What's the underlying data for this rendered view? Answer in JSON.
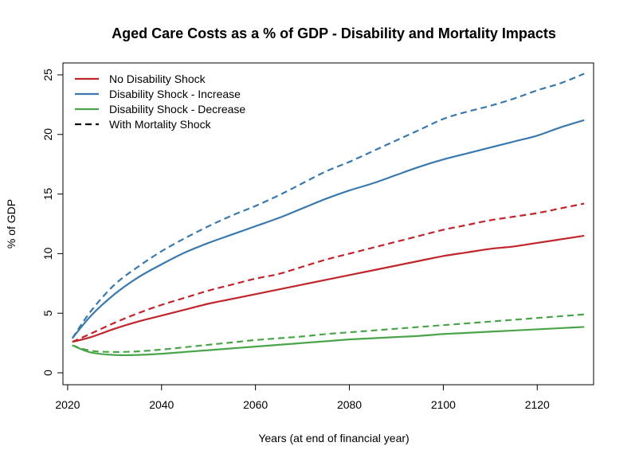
{
  "chart_data": {
    "type": "line",
    "title": "Aged Care Costs as a % of GDP - Disability and Mortality Impacts",
    "xlabel": "Years (at end of financial year)",
    "ylabel": "% of GDP",
    "xlim": [
      2019,
      2132
    ],
    "ylim": [
      -1,
      26
    ],
    "xticks": [
      2020,
      2040,
      2060,
      2080,
      2100,
      2120
    ],
    "yticks": [
      0,
      5,
      10,
      15,
      20,
      25
    ],
    "grid": false,
    "legend_position": "top-left",
    "legend": [
      {
        "label": "No Disability Shock",
        "color": "#c0252b",
        "dash": "solid"
      },
      {
        "label": "Disability Shock - Increase",
        "color": "#3a79ad",
        "dash": "solid"
      },
      {
        "label": "Disability Shock - Decrease",
        "color": "#4aa54a",
        "dash": "solid"
      },
      {
        "label": "With Mortality Shock",
        "color": "#000000",
        "dash": "dashed"
      }
    ],
    "series": [
      {
        "name": "No Disability Shock",
        "color": "#c0252b",
        "dash": "solid",
        "x": [
          2021,
          2025,
          2030,
          2035,
          2040,
          2045,
          2050,
          2055,
          2060,
          2065,
          2070,
          2075,
          2080,
          2085,
          2090,
          2095,
          2100,
          2105,
          2110,
          2115,
          2120,
          2125,
          2130
        ],
        "y": [
          2.6,
          3.0,
          3.7,
          4.3,
          4.8,
          5.3,
          5.8,
          6.2,
          6.6,
          7.0,
          7.4,
          7.8,
          8.2,
          8.6,
          9.0,
          9.4,
          9.8,
          10.1,
          10.4,
          10.6,
          10.9,
          11.2,
          11.5
        ]
      },
      {
        "name": "Disability Shock - Increase",
        "color": "#3a79ad",
        "dash": "solid",
        "x": [
          2021,
          2025,
          2030,
          2035,
          2040,
          2045,
          2050,
          2055,
          2060,
          2065,
          2070,
          2075,
          2080,
          2085,
          2090,
          2095,
          2100,
          2105,
          2110,
          2115,
          2120,
          2125,
          2130
        ],
        "y": [
          2.9,
          4.8,
          6.6,
          8.0,
          9.1,
          10.1,
          10.9,
          11.6,
          12.3,
          13.0,
          13.8,
          14.6,
          15.3,
          15.9,
          16.6,
          17.3,
          17.9,
          18.4,
          18.9,
          19.4,
          19.9,
          20.6,
          21.2
        ]
      },
      {
        "name": "Disability Shock - Decrease",
        "color": "#4aa54a",
        "dash": "solid",
        "x": [
          2021,
          2025,
          2030,
          2035,
          2040,
          2045,
          2050,
          2055,
          2060,
          2065,
          2070,
          2075,
          2080,
          2085,
          2090,
          2095,
          2100,
          2105,
          2110,
          2115,
          2120,
          2125,
          2130
        ],
        "y": [
          2.3,
          1.7,
          1.5,
          1.5,
          1.6,
          1.75,
          1.9,
          2.05,
          2.2,
          2.35,
          2.5,
          2.65,
          2.8,
          2.9,
          3.0,
          3.1,
          3.25,
          3.35,
          3.45,
          3.55,
          3.65,
          3.75,
          3.85
        ]
      },
      {
        "name": "No Disability Shock (With Mortality Shock)",
        "color": "#c0252b",
        "dash": "dashed",
        "x": [
          2021,
          2025,
          2030,
          2035,
          2040,
          2045,
          2050,
          2055,
          2060,
          2065,
          2070,
          2075,
          2080,
          2085,
          2090,
          2095,
          2100,
          2105,
          2110,
          2115,
          2120,
          2125,
          2130
        ],
        "y": [
          2.6,
          3.3,
          4.2,
          5.0,
          5.7,
          6.3,
          6.9,
          7.4,
          7.9,
          8.3,
          8.9,
          9.5,
          10.0,
          10.5,
          11.0,
          11.5,
          12.0,
          12.4,
          12.8,
          13.1,
          13.4,
          13.8,
          14.2
        ]
      },
      {
        "name": "Disability Shock - Increase (With Mortality Shock)",
        "color": "#3a79ad",
        "dash": "dashed",
        "x": [
          2021,
          2025,
          2030,
          2035,
          2040,
          2045,
          2050,
          2055,
          2060,
          2065,
          2070,
          2075,
          2080,
          2085,
          2090,
          2095,
          2100,
          2105,
          2110,
          2115,
          2120,
          2125,
          2130
        ],
        "y": [
          2.9,
          5.2,
          7.4,
          8.9,
          10.2,
          11.3,
          12.3,
          13.2,
          14.0,
          14.9,
          15.9,
          16.9,
          17.7,
          18.6,
          19.5,
          20.4,
          21.3,
          21.9,
          22.4,
          23.0,
          23.7,
          24.3,
          25.1
        ]
      },
      {
        "name": "Disability Shock - Decrease (With Mortality Shock)",
        "color": "#4aa54a",
        "dash": "dashed",
        "x": [
          2021,
          2025,
          2030,
          2035,
          2040,
          2045,
          2050,
          2055,
          2060,
          2065,
          2070,
          2075,
          2080,
          2085,
          2090,
          2095,
          2100,
          2105,
          2110,
          2115,
          2120,
          2125,
          2130
        ],
        "y": [
          2.3,
          1.85,
          1.75,
          1.8,
          1.95,
          2.15,
          2.35,
          2.55,
          2.75,
          2.9,
          3.05,
          3.25,
          3.4,
          3.55,
          3.7,
          3.85,
          4.0,
          4.15,
          4.3,
          4.45,
          4.6,
          4.75,
          4.9
        ]
      }
    ]
  }
}
